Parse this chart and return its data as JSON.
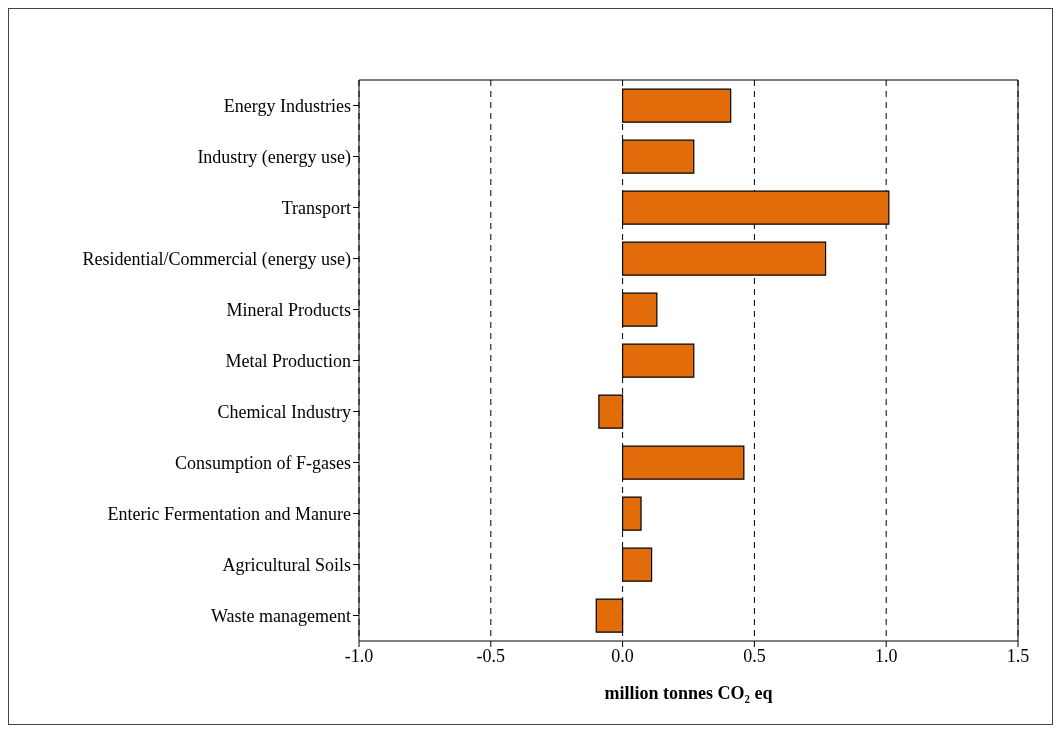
{
  "chart_data": {
    "type": "bar",
    "orientation": "horizontal",
    "xlabel": "million tonnes CO₂ eq",
    "categories": [
      "Energy Industries",
      "Industry (energy use)",
      "Transport",
      "Residential/Commercial (energy use)",
      "Mineral Products",
      "Metal Production",
      "Chemical Industry",
      "Consumption of F-gases",
      "Enteric Fermentation and Manure",
      "Agricultural Soils",
      "Waste management"
    ],
    "values": [
      0.41,
      0.27,
      1.01,
      0.77,
      0.13,
      0.27,
      -0.09,
      0.46,
      0.07,
      0.11,
      -0.1
    ],
    "color": "#e36c0a",
    "xlim": [
      -1.0,
      1.5
    ],
    "xticks": [
      {
        "value": -1.0,
        "label": "-1.0"
      },
      {
        "value": -0.5,
        "label": "-0.5"
      },
      {
        "value": 0,
        "label": "0.0"
      },
      {
        "value": 0.5,
        "label": "0.5"
      },
      {
        "value": 1.0,
        "label": "1.0"
      },
      {
        "value": 1.5,
        "label": "1.5"
      }
    ],
    "grid": "x"
  }
}
